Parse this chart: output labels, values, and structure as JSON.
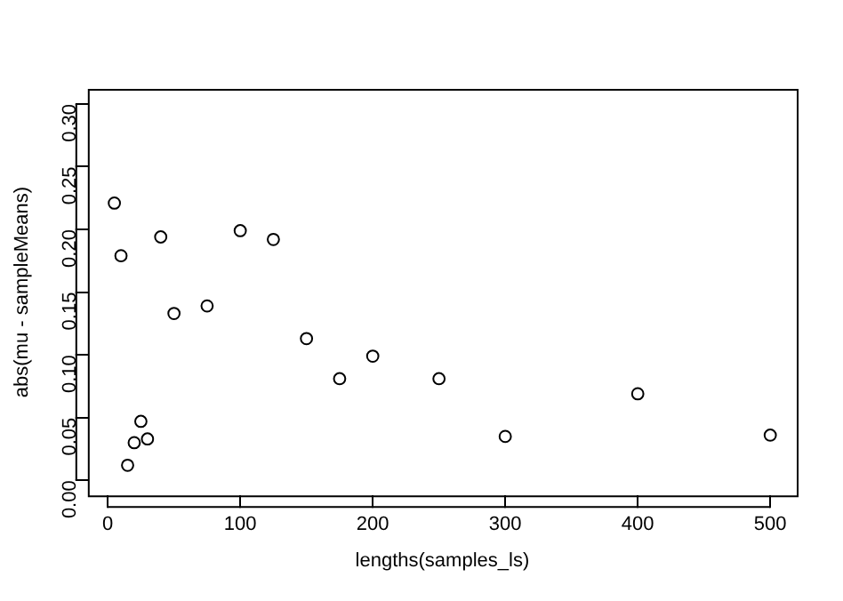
{
  "chart_data": {
    "type": "scatter",
    "xlabel": "lengths(samples_ls)",
    "ylabel": "abs(mu - sampleMeans)",
    "x": [
      5,
      10,
      15,
      20,
      25,
      30,
      40,
      50,
      75,
      100,
      125,
      150,
      175,
      200,
      250,
      300,
      400,
      500
    ],
    "values": [
      0.221,
      0.179,
      0.012,
      0.03,
      0.047,
      0.033,
      0.194,
      0.133,
      0.139,
      0.199,
      0.192,
      0.113,
      0.081,
      0.099,
      0.081,
      0.035,
      0.069,
      0.036
    ],
    "color": "#000000",
    "marker": "circle",
    "xlim": [
      -15,
      520
    ],
    "xticks": [
      0,
      100,
      200,
      300,
      400,
      500
    ],
    "ylim": [
      -0.012,
      0.312
    ],
    "yticks": [
      {
        "value": 0,
        "label": "0.00"
      },
      {
        "value": 0.05,
        "label": "0.05"
      },
      {
        "value": 0.1,
        "label": "0.10"
      },
      {
        "value": 0.15,
        "label": "0.15"
      },
      {
        "value": 0.2,
        "label": "0.20"
      },
      {
        "value": 0.25,
        "label": "0.25"
      },
      {
        "value": 0.3,
        "label": "0.30"
      }
    ],
    "grid": false,
    "legend": false
  }
}
